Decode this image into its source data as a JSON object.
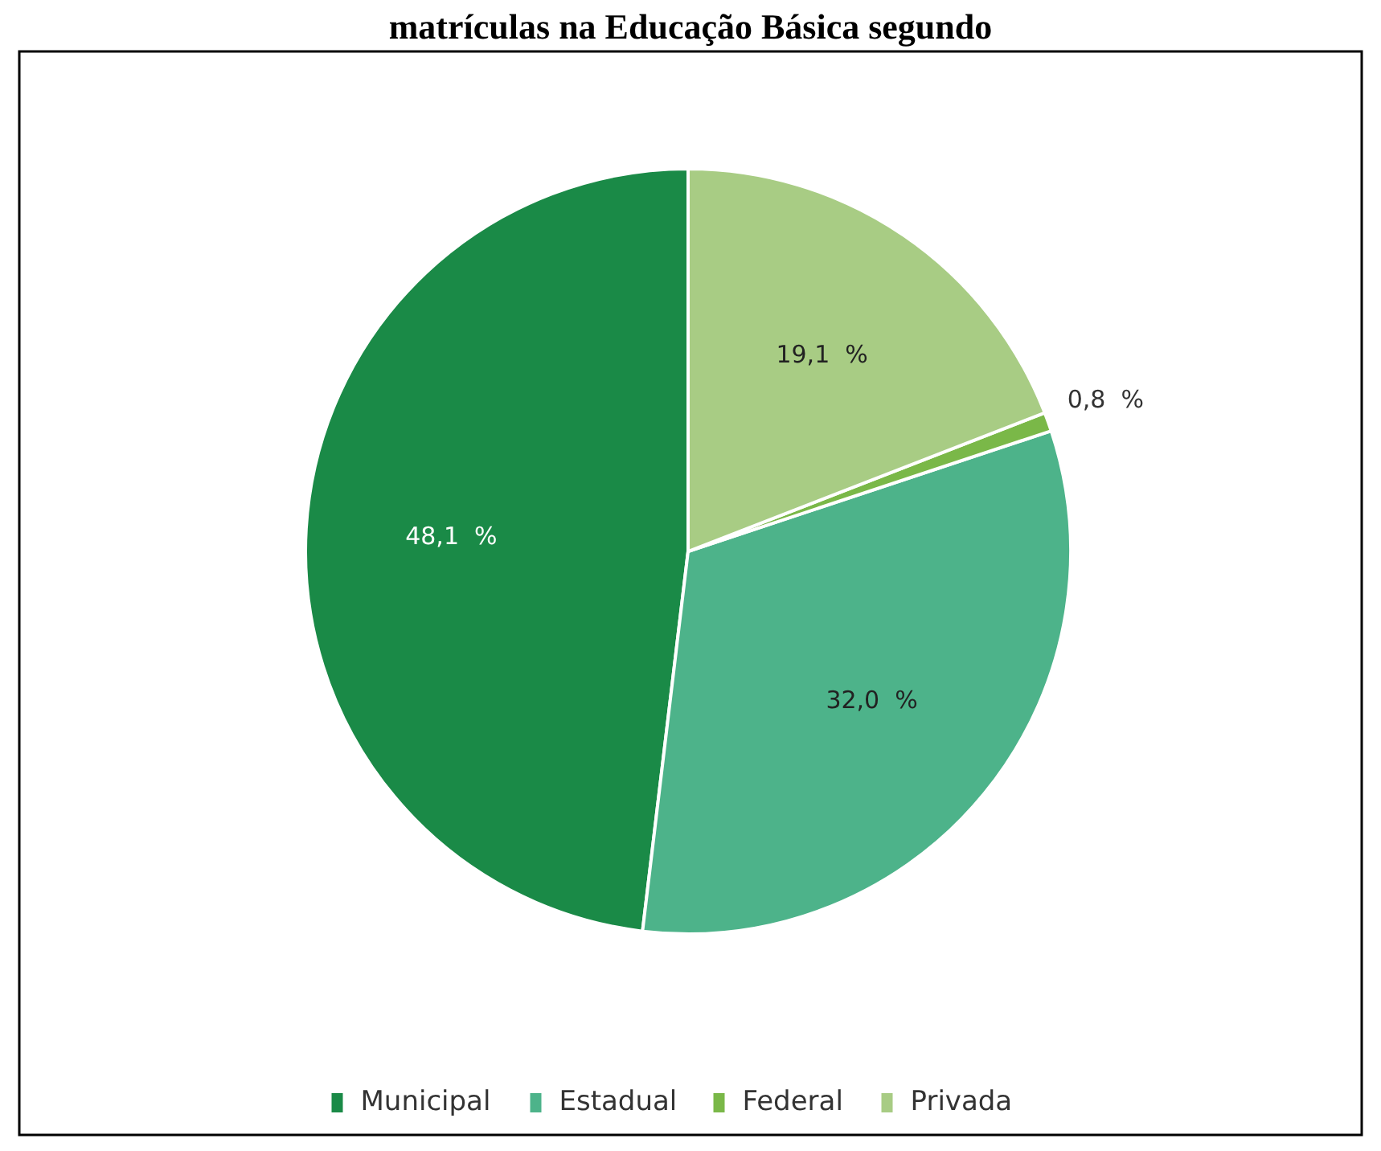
{
  "chart_data": {
    "type": "pie",
    "title": "matrículas na Educação Básica segundo",
    "categories": [
      "Municipal",
      "Estadual",
      "Federal",
      "Privada"
    ],
    "values": [
      48.1,
      32.0,
      0.8,
      19.1
    ],
    "value_labels": [
      "48,1  %",
      "32,0  %",
      "0,8  %",
      "19,1  %"
    ],
    "colors": [
      "#1a8a47",
      "#4db38a",
      "#7ab848",
      "#a8cc84"
    ],
    "legend": "bottom"
  }
}
